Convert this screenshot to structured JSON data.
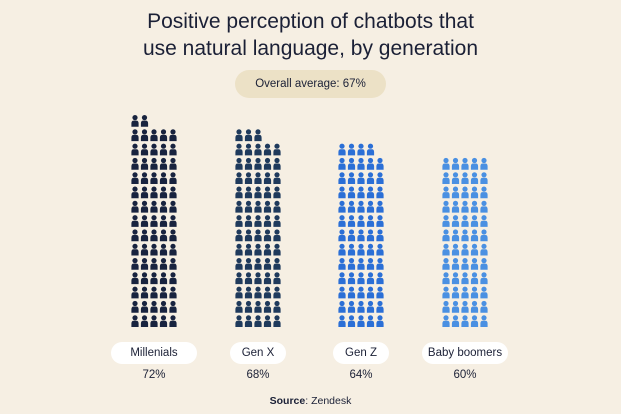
{
  "title": {
    "line1": "Positive perception of chatbots that",
    "line2": "use natural language, by generation"
  },
  "average_label": "Overall average: 67%",
  "source": {
    "label": "Source",
    "value": "Zendesk"
  },
  "chart_data": {
    "type": "bar",
    "subtype": "pictogram",
    "title": "Positive perception of chatbots that use natural language, by generation",
    "categories": [
      "Millenials",
      "Gen X",
      "Gen Z",
      "Baby boomers"
    ],
    "values": [
      72,
      68,
      64,
      60
    ],
    "value_labels": [
      "72%",
      "68%",
      "64%",
      "60%"
    ],
    "average": 67,
    "colors": [
      "#18233f",
      "#1f3a5c",
      "#2b6fd6",
      "#4a90e2"
    ],
    "icon": "person-icon"
  }
}
